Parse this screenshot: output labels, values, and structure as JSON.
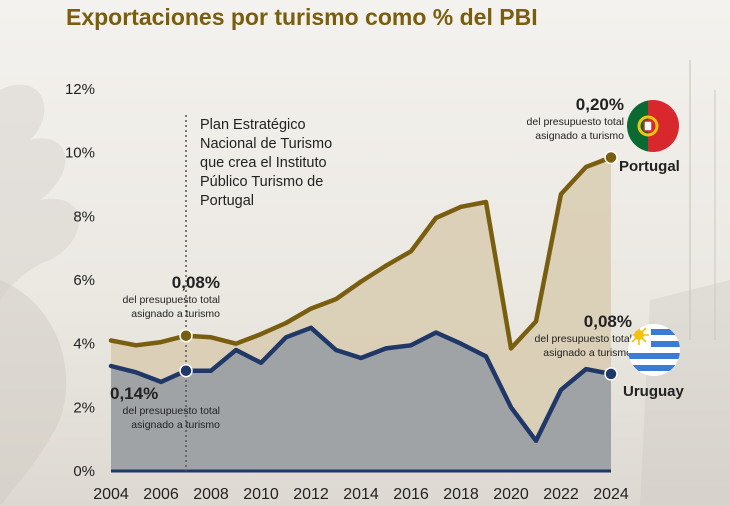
{
  "title": "Exportaciones por turismo como % del PBI",
  "annotations": {
    "plan": "Plan Estratégico Nacional de Turismo que crea el Instituto Público Turismo de Portugal",
    "pt_2007_pct": "0,08%",
    "pt_2007_sub1": "del presupuesto total",
    "pt_2007_sub2": "asignado a turismo",
    "uy_2007_pct": "0,14%",
    "uy_2007_sub1": "del presupuesto total",
    "uy_2007_sub2": "asignado a turismo",
    "pt_2024_pct": "0,20%",
    "pt_2024_sub1": "del presupuesto total",
    "pt_2024_sub2": "asignado a turismo",
    "uy_2024_pct": "0,08%",
    "uy_2024_sub1": "del presupuesto total",
    "uy_2024_sub2": "asignado a turismo",
    "portugal_label": "Portugal",
    "uruguay_label": "Uruguay"
  },
  "colors": {
    "portugal": "#7a5e10",
    "portugal_fill": "#d8cdb0",
    "uruguay": "#1f3868",
    "uruguay_fill": "#9da0a4",
    "dotted_line": "#555555"
  },
  "chart_data": {
    "type": "area",
    "title": "Exportaciones por turismo como % del PBI",
    "x": [
      2004,
      2005,
      2006,
      2007,
      2008,
      2009,
      2010,
      2011,
      2012,
      2013,
      2014,
      2015,
      2016,
      2017,
      2018,
      2019,
      2020,
      2021,
      2022,
      2023,
      2024
    ],
    "series": [
      {
        "name": "Portugal",
        "values": [
          4.1,
          3.95,
          4.05,
          4.25,
          4.2,
          4.0,
          4.3,
          4.65,
          5.1,
          5.4,
          5.95,
          6.45,
          6.9,
          7.95,
          8.3,
          8.45,
          3.85,
          4.7,
          8.7,
          9.55,
          9.85
        ]
      },
      {
        "name": "Uruguay",
        "values": [
          3.3,
          3.1,
          2.8,
          3.15,
          3.15,
          3.8,
          3.4,
          4.2,
          4.5,
          3.8,
          3.55,
          3.85,
          3.95,
          4.35,
          4.0,
          3.6,
          2.0,
          0.95,
          2.55,
          3.2,
          3.05
        ]
      }
    ],
    "highlight_points": [
      {
        "series": "Portugal",
        "x": 2007
      },
      {
        "series": "Uruguay",
        "x": 2007
      },
      {
        "series": "Portugal",
        "x": 2024
      },
      {
        "series": "Uruguay",
        "x": 2024
      }
    ],
    "reference_line_x": 2007,
    "xlim": [
      2004,
      2024
    ],
    "ylim": [
      0,
      12
    ],
    "y_ticks": [
      "0%",
      "2%",
      "4%",
      "6%",
      "8%",
      "10%",
      "12%"
    ],
    "x_ticks": [
      "2004",
      "2006",
      "2008",
      "2010",
      "2012",
      "2014",
      "2016",
      "2018",
      "2020",
      "2022",
      "2024"
    ],
    "grid": false,
    "legend": "none"
  }
}
